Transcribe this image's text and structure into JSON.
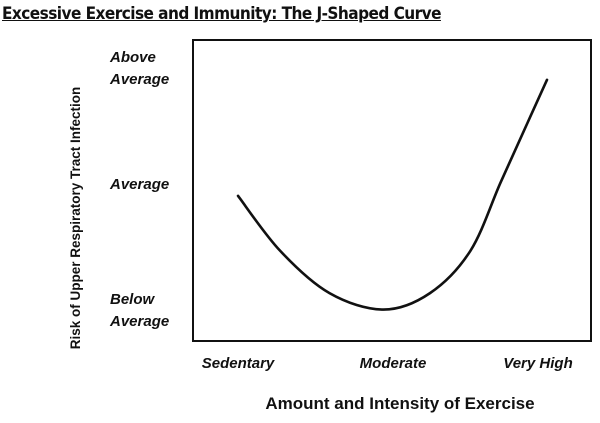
{
  "chart_data": {
    "type": "line",
    "title": "Excessive Exercise and Immunity: The J-Shaped Curve",
    "xlabel": "Amount and Intensity of Exercise",
    "ylabel": "Risk of Upper Respiratory Tract Infection",
    "x_ticks": [
      "Sedentary",
      "Moderate",
      "Very High"
    ],
    "y_ticks": [
      {
        "lines": [
          "Below",
          "Average"
        ],
        "level": 0
      },
      {
        "lines": [
          "Average"
        ],
        "level": 1
      },
      {
        "lines": [
          "Above",
          "Average"
        ],
        "level": 2
      }
    ],
    "grid": false,
    "line_color": "#111111",
    "series": [
      {
        "x": [
          0,
          0.28,
          0.61,
          0.97,
          1.28,
          1.55,
          1.75,
          1.93,
          2.06
        ],
        "y": [
          0.95,
          0.55,
          0.24,
          0.12,
          0.24,
          0.55,
          1.06,
          1.63,
          2.04
        ]
      }
    ]
  }
}
